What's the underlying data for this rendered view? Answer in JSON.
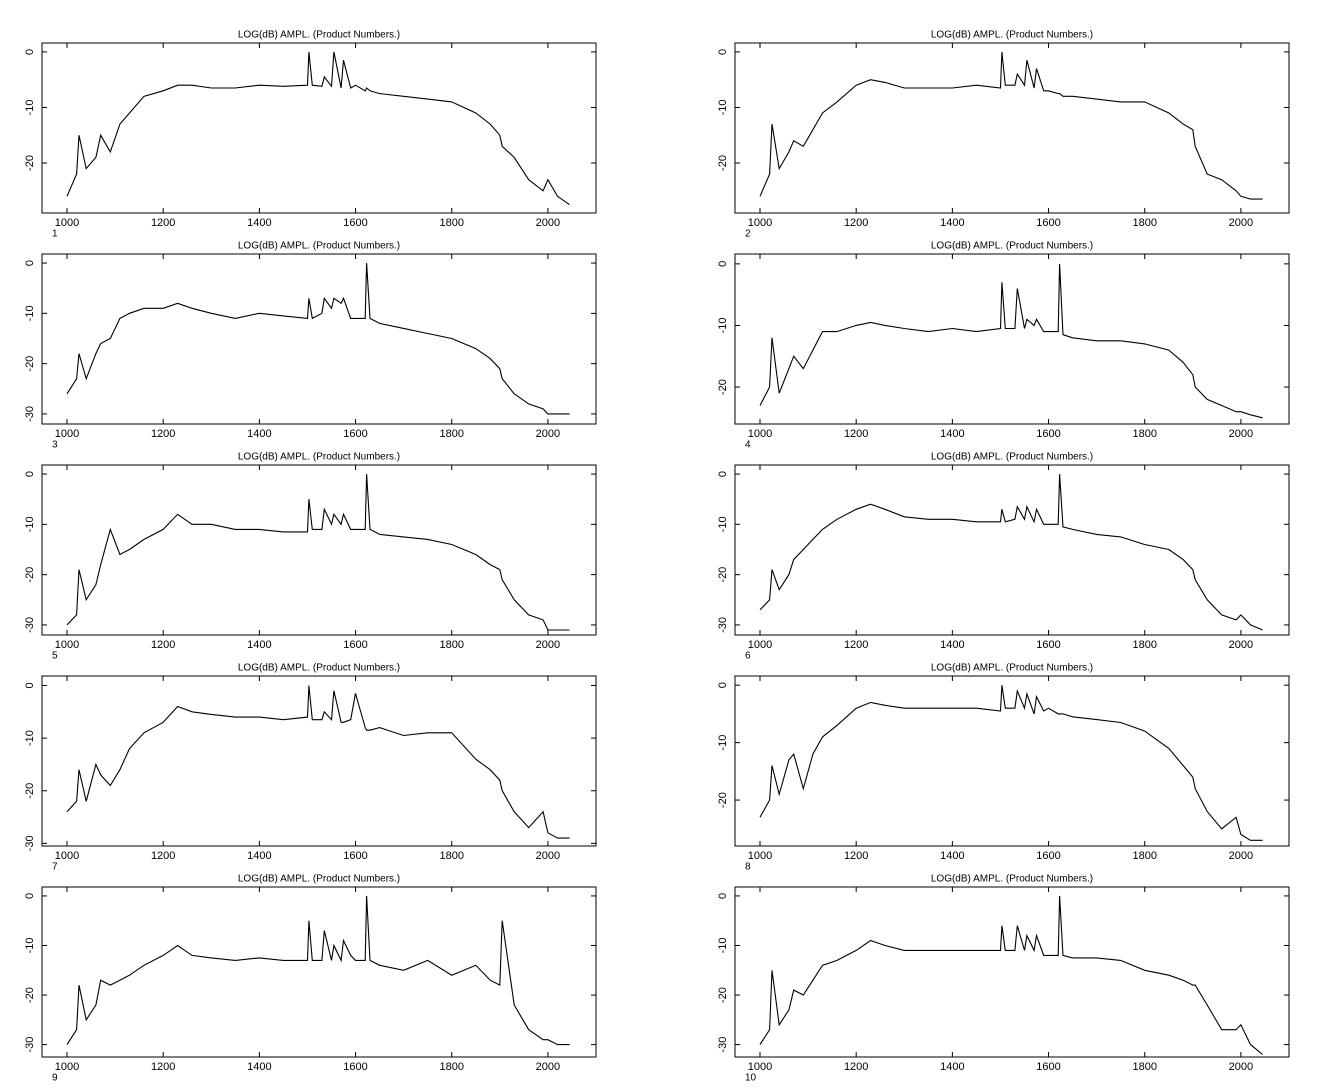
{
  "chart_data": [
    {
      "type": "line",
      "title": "LOG(dB) AMPL.  (Product Numbers.)",
      "panel_label": "1",
      "color": "#000000",
      "x": [
        1000,
        1020,
        1025,
        1040,
        1060,
        1070,
        1090,
        1110,
        1130,
        1160,
        1200,
        1230,
        1260,
        1300,
        1350,
        1400,
        1450,
        1500,
        1503,
        1510,
        1530,
        1535,
        1550,
        1555,
        1570,
        1575,
        1590,
        1600,
        1620,
        1623,
        1630,
        1650,
        1700,
        1750,
        1800,
        1850,
        1880,
        1900,
        1905,
        1930,
        1960,
        1990,
        2000,
        2020,
        2045
      ],
      "values": [
        -26,
        -22,
        -15,
        -21,
        -19,
        -15,
        -18,
        -13,
        -11,
        -8,
        -7,
        -6,
        -6,
        -6.5,
        -6.5,
        -6,
        -6.2,
        -6,
        0,
        -6,
        -6.2,
        -4.5,
        -6.2,
        0,
        -6.5,
        -1.5,
        -6.5,
        -6,
        -7,
        -6.5,
        -7,
        -7.5,
        -8,
        -8.5,
        -9,
        -11,
        -13,
        -15,
        -17,
        -19,
        -23,
        -25,
        -23,
        -26,
        -27.5
      ],
      "xlim": [
        948,
        2100
      ],
      "ylim": [
        -29,
        1.6
      ],
      "xticks": [
        1000,
        1200,
        1400,
        1600,
        1800,
        2000
      ],
      "yticks": [
        0,
        -10,
        -20
      ]
    },
    {
      "type": "line",
      "title": "LOG(dB) AMPL.  (Product Numbers.)",
      "panel_label": "2",
      "color": "#000000",
      "x": [
        1000,
        1020,
        1025,
        1040,
        1060,
        1070,
        1090,
        1110,
        1130,
        1160,
        1200,
        1230,
        1260,
        1300,
        1350,
        1400,
        1450,
        1500,
        1503,
        1510,
        1530,
        1535,
        1550,
        1555,
        1570,
        1575,
        1590,
        1600,
        1620,
        1623,
        1630,
        1650,
        1700,
        1750,
        1800,
        1850,
        1880,
        1900,
        1905,
        1930,
        1960,
        1990,
        2000,
        2020,
        2045
      ],
      "values": [
        -26,
        -22,
        -13,
        -21,
        -18,
        -16,
        -17,
        -14,
        -11,
        -9,
        -6,
        -5,
        -5.5,
        -6.5,
        -6.5,
        -6.5,
        -6,
        -6.5,
        0,
        -6,
        -6,
        -4,
        -6,
        -1.5,
        -6.5,
        -3,
        -7,
        -7,
        -7.5,
        -7.5,
        -8,
        -8,
        -8.5,
        -9,
        -9,
        -11,
        -13,
        -14,
        -17,
        -22,
        -23,
        -25,
        -26,
        -26.5,
        -26.5
      ],
      "xlim": [
        948,
        2100
      ],
      "ylim": [
        -29,
        1.6
      ],
      "xticks": [
        1000,
        1200,
        1400,
        1600,
        1800,
        2000
      ],
      "yticks": [
        0,
        -10,
        -20
      ]
    },
    {
      "type": "line",
      "title": "LOG(dB) AMPL.  (Product Numbers.)",
      "panel_label": "3",
      "color": "#000000",
      "x": [
        1000,
        1020,
        1025,
        1040,
        1060,
        1070,
        1090,
        1110,
        1130,
        1160,
        1200,
        1230,
        1260,
        1300,
        1350,
        1400,
        1450,
        1500,
        1503,
        1510,
        1530,
        1535,
        1550,
        1555,
        1570,
        1575,
        1590,
        1600,
        1620,
        1623,
        1630,
        1650,
        1700,
        1750,
        1800,
        1850,
        1880,
        1900,
        1905,
        1930,
        1960,
        1990,
        2000,
        2020,
        2045
      ],
      "values": [
        -26,
        -23,
        -18,
        -23,
        -18,
        -16,
        -15,
        -11,
        -10,
        -9,
        -9,
        -8,
        -9,
        -10,
        -11,
        -10,
        -10.5,
        -11,
        -7,
        -11,
        -10,
        -7,
        -9,
        -7,
        -8,
        -7,
        -11,
        -11,
        -11,
        0,
        -11,
        -12,
        -13,
        -14,
        -15,
        -17,
        -19,
        -21,
        -23,
        -26,
        -28,
        -29,
        -30,
        -30,
        -30
      ],
      "xlim": [
        948,
        2100
      ],
      "ylim": [
        -32,
        1.8
      ],
      "xticks": [
        1000,
        1200,
        1400,
        1600,
        1800,
        2000
      ],
      "yticks": [
        0,
        -10,
        -20,
        -30
      ]
    },
    {
      "type": "line",
      "title": "LOG(dB) AMPL.  (Product Numbers.)",
      "panel_label": "4",
      "color": "#000000",
      "x": [
        1000,
        1020,
        1025,
        1040,
        1060,
        1070,
        1090,
        1110,
        1130,
        1160,
        1200,
        1230,
        1260,
        1300,
        1350,
        1400,
        1450,
        1500,
        1503,
        1510,
        1530,
        1535,
        1550,
        1555,
        1570,
        1575,
        1590,
        1600,
        1620,
        1623,
        1630,
        1650,
        1700,
        1750,
        1800,
        1850,
        1880,
        1900,
        1905,
        1930,
        1960,
        1990,
        2000,
        2020,
        2045
      ],
      "values": [
        -23,
        -20,
        -12,
        -21,
        -17,
        -15,
        -17,
        -14,
        -11,
        -11,
        -10,
        -9.5,
        -10,
        -10.5,
        -11,
        -10.5,
        -11,
        -10.5,
        -3,
        -10.5,
        -10.5,
        -4,
        -10.5,
        -9,
        -10,
        -9,
        -11,
        -11,
        -11,
        0,
        -11.5,
        -12,
        -12.5,
        -12.5,
        -13,
        -14,
        -16,
        -18,
        -20,
        -22,
        -23,
        -24,
        -24,
        -24.5,
        -25
      ],
      "xlim": [
        948,
        2100
      ],
      "ylim": [
        -26,
        1.6
      ],
      "xticks": [
        1000,
        1200,
        1400,
        1600,
        1800,
        2000
      ],
      "yticks": [
        0,
        -10,
        -20
      ]
    },
    {
      "type": "line",
      "title": "LOG(dB) AMPL.  (Product Numbers.)",
      "panel_label": "5",
      "color": "#000000",
      "x": [
        1000,
        1020,
        1025,
        1040,
        1060,
        1070,
        1090,
        1110,
        1130,
        1160,
        1200,
        1230,
        1260,
        1300,
        1350,
        1400,
        1450,
        1500,
        1503,
        1510,
        1530,
        1535,
        1550,
        1555,
        1570,
        1575,
        1590,
        1600,
        1620,
        1623,
        1630,
        1650,
        1700,
        1750,
        1800,
        1850,
        1880,
        1900,
        1905,
        1930,
        1960,
        1990,
        2000,
        2020,
        2045
      ],
      "values": [
        -30,
        -28,
        -19,
        -25,
        -22,
        -18,
        -11,
        -16,
        -15,
        -13,
        -11,
        -8,
        -10,
        -10,
        -11,
        -11,
        -11.5,
        -11.5,
        -5,
        -11,
        -11,
        -7,
        -10,
        -8,
        -10,
        -8,
        -11,
        -11,
        -11,
        0,
        -11,
        -12,
        -12.5,
        -13,
        -14,
        -16,
        -18,
        -19,
        -21,
        -25,
        -28,
        -29,
        -31,
        -31,
        -31
      ],
      "xlim": [
        948,
        2100
      ],
      "ylim": [
        -32,
        1.8
      ],
      "xticks": [
        1000,
        1200,
        1400,
        1600,
        1800,
        2000
      ],
      "yticks": [
        0,
        -10,
        -20,
        -30
      ]
    },
    {
      "type": "line",
      "title": "LOG(dB) AMPL.  (Product Numbers.)",
      "panel_label": "6",
      "color": "#000000",
      "x": [
        1000,
        1020,
        1025,
        1040,
        1060,
        1070,
        1090,
        1110,
        1130,
        1160,
        1200,
        1230,
        1260,
        1300,
        1350,
        1400,
        1450,
        1500,
        1503,
        1510,
        1530,
        1535,
        1550,
        1555,
        1570,
        1575,
        1590,
        1600,
        1620,
        1623,
        1630,
        1650,
        1700,
        1750,
        1800,
        1850,
        1880,
        1900,
        1905,
        1930,
        1960,
        1990,
        2000,
        2020,
        2045
      ],
      "values": [
        -27,
        -25,
        -19,
        -23,
        -20,
        -17,
        -15,
        -13,
        -11,
        -9,
        -7,
        -6,
        -7,
        -8.5,
        -9,
        -9,
        -9.5,
        -9.5,
        -7,
        -9.5,
        -9,
        -6.5,
        -9,
        -6.5,
        -9.5,
        -7,
        -10,
        -10,
        -10,
        0,
        -10.5,
        -11,
        -12,
        -12.5,
        -14,
        -15,
        -17,
        -19,
        -21,
        -25,
        -28,
        -29,
        -28,
        -30,
        -31
      ],
      "xlim": [
        948,
        2100
      ],
      "ylim": [
        -32,
        1.8
      ],
      "xticks": [
        1000,
        1200,
        1400,
        1600,
        1800,
        2000
      ],
      "yticks": [
        0,
        -10,
        -20,
        -30
      ]
    },
    {
      "type": "line",
      "title": "LOG(dB) AMPL.  (Product Numbers.)",
      "panel_label": "7",
      "color": "#000000",
      "x": [
        1000,
        1020,
        1025,
        1040,
        1060,
        1070,
        1090,
        1110,
        1130,
        1160,
        1200,
        1230,
        1260,
        1300,
        1350,
        1400,
        1450,
        1500,
        1503,
        1510,
        1530,
        1535,
        1550,
        1555,
        1570,
        1575,
        1590,
        1600,
        1620,
        1623,
        1630,
        1650,
        1700,
        1750,
        1800,
        1850,
        1880,
        1900,
        1905,
        1930,
        1960,
        1990,
        2000,
        2020,
        2045
      ],
      "values": [
        -24,
        -22,
        -16,
        -22,
        -15,
        -17,
        -19,
        -16,
        -12,
        -9,
        -7,
        -4,
        -5,
        -5.5,
        -6,
        -6,
        -6.5,
        -6,
        0,
        -6.5,
        -6.5,
        -5,
        -6.5,
        -1,
        -7,
        -7,
        -6.5,
        -1.5,
        -8,
        -8.5,
        -8.5,
        -8,
        -9.5,
        -9,
        -9,
        -14,
        -16,
        -18,
        -20,
        -24,
        -27,
        -24,
        -28,
        -29,
        -29
      ],
      "xlim": [
        948,
        2100
      ],
      "ylim": [
        -30.5,
        1.8
      ],
      "xticks": [
        1000,
        1200,
        1400,
        1600,
        1800,
        2000
      ],
      "yticks": [
        0,
        -10,
        -20,
        -30
      ]
    },
    {
      "type": "line",
      "title": "LOG(dB) AMPL.  (Product Numbers.)",
      "panel_label": "8",
      "color": "#000000",
      "x": [
        1000,
        1020,
        1025,
        1040,
        1060,
        1070,
        1090,
        1110,
        1130,
        1160,
        1200,
        1230,
        1260,
        1300,
        1350,
        1400,
        1450,
        1500,
        1503,
        1510,
        1530,
        1535,
        1550,
        1555,
        1570,
        1575,
        1590,
        1600,
        1620,
        1623,
        1630,
        1650,
        1700,
        1750,
        1800,
        1850,
        1880,
        1900,
        1905,
        1930,
        1960,
        1990,
        2000,
        2020,
        2045
      ],
      "values": [
        -23,
        -20,
        -14,
        -19,
        -13,
        -12,
        -18,
        -12,
        -9,
        -7,
        -4,
        -3,
        -3.5,
        -4,
        -4,
        -4,
        -4,
        -4.5,
        0,
        -4,
        -4,
        -1,
        -4,
        -1.5,
        -5,
        -2,
        -4.5,
        -4,
        -5,
        -5,
        -5,
        -5.5,
        -6,
        -6.5,
        -8,
        -11,
        -14,
        -16,
        -18,
        -22,
        -25,
        -23,
        -26,
        -27,
        -27
      ],
      "xlim": [
        948,
        2100
      ],
      "ylim": [
        -28,
        1.6
      ],
      "xticks": [
        1000,
        1200,
        1400,
        1600,
        1800,
        2000
      ],
      "yticks": [
        0,
        -10,
        -20
      ]
    },
    {
      "type": "line",
      "title": "LOG(dB) AMPL.  (Product Numbers.)",
      "panel_label": "9",
      "color": "#000000",
      "x": [
        1000,
        1020,
        1025,
        1040,
        1060,
        1070,
        1090,
        1110,
        1130,
        1160,
        1200,
        1230,
        1260,
        1300,
        1350,
        1400,
        1450,
        1500,
        1503,
        1510,
        1530,
        1535,
        1550,
        1555,
        1570,
        1575,
        1590,
        1600,
        1620,
        1623,
        1630,
        1650,
        1700,
        1750,
        1800,
        1850,
        1880,
        1900,
        1905,
        1930,
        1960,
        1990,
        2000,
        2020,
        2045
      ],
      "values": [
        -30,
        -27,
        -18,
        -25,
        -22,
        -17,
        -18,
        -17,
        -16,
        -14,
        -12,
        -10,
        -12,
        -12.5,
        -13,
        -12.5,
        -13,
        -13,
        -5,
        -13,
        -13,
        -7,
        -13,
        -10,
        -13,
        -9,
        -12,
        -13,
        -13,
        0,
        -13,
        -14,
        -15,
        -13,
        -16,
        -14,
        -17,
        -18,
        -5,
        -22,
        -27,
        -29,
        -29,
        -30,
        -30
      ],
      "xlim": [
        948,
        2100
      ],
      "ylim": [
        -32.5,
        1.8
      ],
      "xticks": [
        1000,
        1200,
        1400,
        1600,
        1800,
        2000
      ],
      "yticks": [
        0,
        -10,
        -20,
        -30
      ]
    },
    {
      "type": "line",
      "title": "LOG(dB) AMPL.  (Product Numbers.)",
      "panel_label": "10",
      "color": "#000000",
      "x": [
        1000,
        1020,
        1025,
        1040,
        1060,
        1070,
        1090,
        1110,
        1130,
        1160,
        1200,
        1230,
        1260,
        1300,
        1350,
        1400,
        1450,
        1500,
        1503,
        1510,
        1530,
        1535,
        1550,
        1555,
        1570,
        1575,
        1590,
        1600,
        1620,
        1623,
        1630,
        1650,
        1700,
        1750,
        1800,
        1850,
        1880,
        1900,
        1905,
        1930,
        1960,
        1990,
        2000,
        2020,
        2045
      ],
      "values": [
        -30,
        -27,
        -15,
        -26,
        -23,
        -19,
        -20,
        -17,
        -14,
        -13,
        -11,
        -9,
        -10,
        -11,
        -11,
        -11,
        -11,
        -11,
        -6,
        -11,
        -11,
        -6,
        -11,
        -8,
        -11,
        -8,
        -12,
        -12,
        -12,
        0,
        -12,
        -12.5,
        -12.5,
        -13,
        -15,
        -16,
        -17,
        -18,
        -18,
        -22,
        -27,
        -27,
        -26,
        -30,
        -32
      ],
      "xlim": [
        948,
        2100
      ],
      "ylim": [
        -32.5,
        1.8
      ],
      "xticks": [
        1000,
        1200,
        1400,
        1600,
        1800,
        2000
      ],
      "yticks": [
        0,
        -10,
        -20,
        -30
      ]
    }
  ]
}
